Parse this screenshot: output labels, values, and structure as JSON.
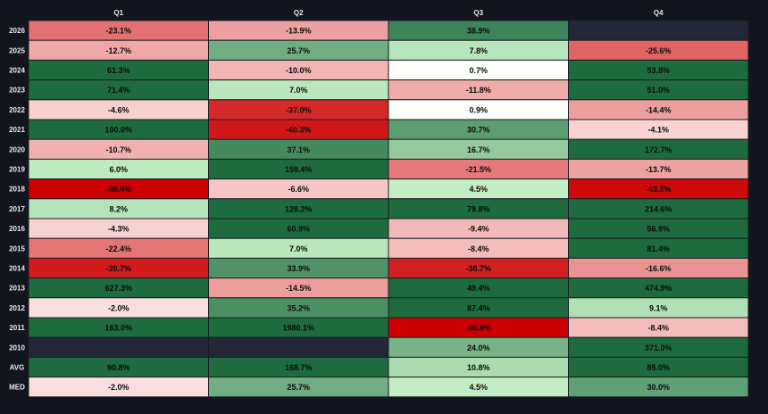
{
  "chart_data": {
    "type": "heatmap",
    "title": "",
    "columns": [
      "Q1",
      "Q2",
      "Q3",
      "Q4"
    ],
    "rows": [
      "2026",
      "2025",
      "2024",
      "2023",
      "2022",
      "2021",
      "2020",
      "2019",
      "2018",
      "2017",
      "2016",
      "2015",
      "2014",
      "2013",
      "2012",
      "2011",
      "2010",
      "AVG",
      "MED"
    ],
    "values": [
      [
        -23.1,
        -13.9,
        38.9,
        null
      ],
      [
        -12.7,
        25.7,
        7.8,
        -25.6
      ],
      [
        61.3,
        -10.0,
        0.7,
        53.8
      ],
      [
        71.4,
        7.0,
        -11.8,
        51.0
      ],
      [
        -4.6,
        -37.0,
        0.9,
        -14.4
      ],
      [
        100.0,
        -40.3,
        30.7,
        -4.1
      ],
      [
        -10.7,
        37.1,
        16.7,
        172.7
      ],
      [
        6.0,
        159.4,
        -21.5,
        -13.7
      ],
      [
        -46.4,
        -6.6,
        4.5,
        -43.2
      ],
      [
        8.2,
        128.2,
        79.8,
        214.6
      ],
      [
        -4.3,
        60.9,
        -9.4,
        56.9
      ],
      [
        -22.4,
        7.0,
        -8.4,
        81.4
      ],
      [
        -39.7,
        33.9,
        -38.7,
        -16.6
      ],
      [
        627.3,
        -14.5,
        49.4,
        474.9
      ],
      [
        -2.0,
        35.2,
        87.4,
        9.1
      ],
      [
        163.0,
        1980.1,
        -66.8,
        -8.4
      ],
      [
        null,
        null,
        24.0,
        371.0
      ],
      [
        90.8,
        168.7,
        10.8,
        85.0
      ],
      [
        -2.0,
        25.7,
        4.5,
        30.0
      ]
    ],
    "labels": [
      [
        "-23.1%",
        "-13.9%",
        "38.9%",
        ""
      ],
      [
        "-12.7%",
        "25.7%",
        "7.8%",
        "-25.6%"
      ],
      [
        "61.3%",
        "-10.0%",
        "0.7%",
        "53.8%"
      ],
      [
        "71.4%",
        "7.0%",
        "-11.8%",
        "51.0%"
      ],
      [
        "-4.6%",
        "-37.0%",
        "0.9%",
        "-14.4%"
      ],
      [
        "100.0%",
        "-40.3%",
        "30.7%",
        "-4.1%"
      ],
      [
        "-10.7%",
        "37.1%",
        "16.7%",
        "172.7%"
      ],
      [
        "6.0%",
        "159.4%",
        "-21.5%",
        "-13.7%"
      ],
      [
        "-46.4%",
        "-6.6%",
        "4.5%",
        "-43.2%"
      ],
      [
        "8.2%",
        "128.2%",
        "79.8%",
        "214.6%"
      ],
      [
        "-4.3%",
        "60.9%",
        "-9.4%",
        "56.9%"
      ],
      [
        "-22.4%",
        "7.0%",
        "-8.4%",
        "81.4%"
      ],
      [
        "-39.7%",
        "33.9%",
        "-38.7%",
        "-16.6%"
      ],
      [
        "627.3%",
        "-14.5%",
        "49.4%",
        "474.9%"
      ],
      [
        "-2.0%",
        "35.2%",
        "87.4%",
        "9.1%"
      ],
      [
        "163.0%",
        "1980.1%",
        "-66.8%",
        "-8.4%"
      ],
      [
        "",
        "",
        "24.0%",
        "371.0%"
      ],
      [
        "90.8%",
        "168.7%",
        "10.8%",
        "85.0%"
      ],
      [
        "-2.0%",
        "25.7%",
        "4.5%",
        "30.0%"
      ]
    ],
    "colors": {
      "background": "#12151d",
      "empty_cell": "#232838",
      "negative_strong": "#cc0000",
      "negative_light": "#fde8e8",
      "neutral": "#fafffa",
      "positive_light": "#cdf6cd",
      "positive_strong": "#1e6b3f",
      "cell_border": "#1a1d24",
      "header_text": "#e6e8ee",
      "cell_text": "#0a0a0a"
    }
  }
}
